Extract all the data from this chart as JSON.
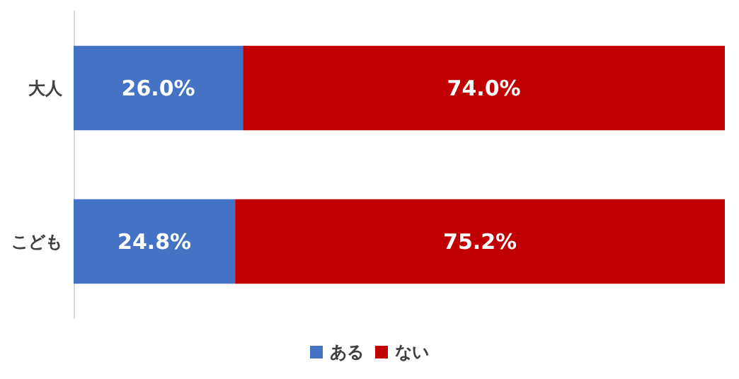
{
  "chart_data": {
    "type": "bar",
    "orientation": "horizontal",
    "stacked": true,
    "categories": [
      "大人",
      "こども"
    ],
    "xlim": [
      0,
      100
    ],
    "tick_labels": "y",
    "grid": false,
    "legend": "bottom",
    "series": [
      {
        "name": "ある",
        "color": "#4472c4",
        "values": [
          26.0,
          24.8
        ],
        "value_labels": [
          "26.0%",
          "24.8%"
        ]
      },
      {
        "name": "ない",
        "color": "#c00000",
        "values": [
          74.0,
          75.2
        ],
        "value_labels": [
          "74.0%",
          "75.2%"
        ]
      }
    ]
  }
}
